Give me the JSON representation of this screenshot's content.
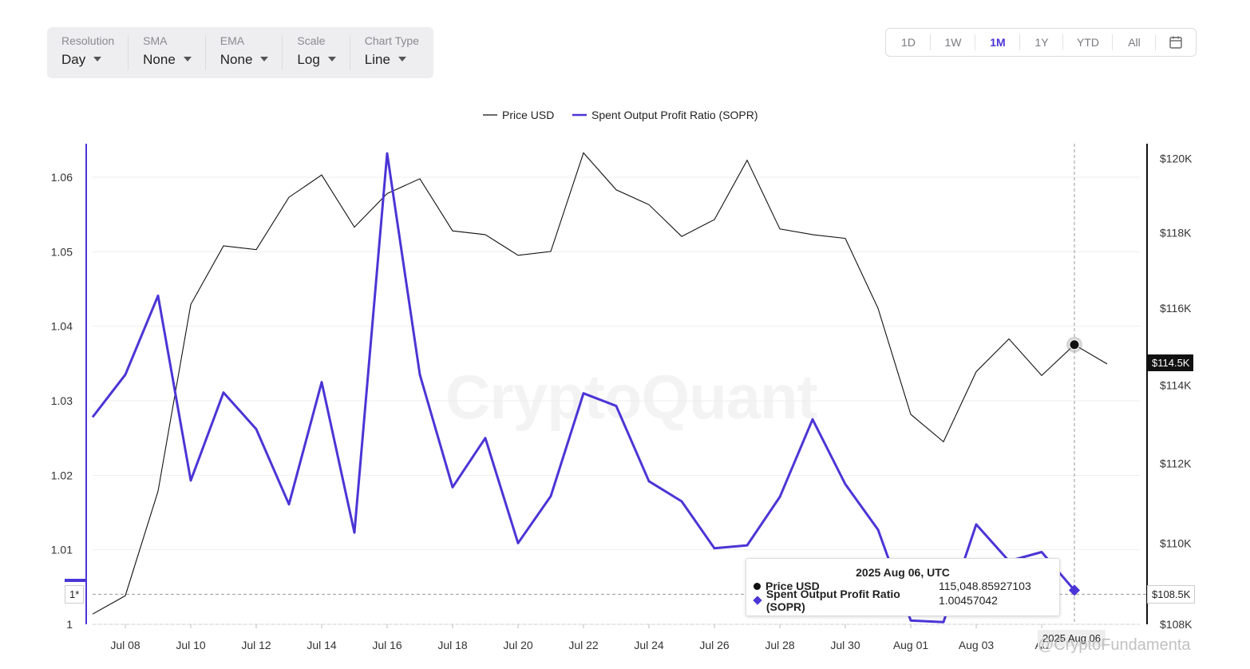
{
  "toolbar": {
    "items": [
      {
        "label": "Resolution",
        "value": "Day"
      },
      {
        "label": "SMA",
        "value": "None"
      },
      {
        "label": "EMA",
        "value": "None"
      },
      {
        "label": "Scale",
        "value": "Log"
      },
      {
        "label": "Chart Type",
        "value": "Line"
      }
    ]
  },
  "range": {
    "buttons": [
      "1D",
      "1W",
      "1M",
      "1Y",
      "YTD",
      "All"
    ],
    "active": "1M",
    "calendar_icon": "calendar-icon"
  },
  "legend": {
    "price": "Price USD",
    "sopr": "Spent Output Profit Ratio (SOPR)"
  },
  "colors": {
    "price": "#111111",
    "sopr": "#4a35d6"
  },
  "tooltip": {
    "date": "2025 Aug 06, UTC",
    "price_name": "Price USD",
    "price_value": "115,048.85927103",
    "sopr_name": "Spent Output Profit Ratio (SOPR)",
    "sopr_value": "1.00457042"
  },
  "badges": {
    "price_marker": "$114.5K",
    "crosshair_price": "$108.5K",
    "left_marker": "1*",
    "crosshair_date": "2025 Aug 06"
  },
  "watermark": "CryptoQuant",
  "watermark2": "@CryptoFundamenta",
  "chart_data": {
    "type": "line",
    "x": [
      "Jul 07",
      "Jul 08",
      "Jul 09",
      "Jul 10",
      "Jul 11",
      "Jul 12",
      "Jul 13",
      "Jul 14",
      "Jul 15",
      "Jul 16",
      "Jul 17",
      "Jul 18",
      "Jul 19",
      "Jul 20",
      "Jul 21",
      "Jul 22",
      "Jul 23",
      "Jul 24",
      "Jul 25",
      "Jul 26",
      "Jul 27",
      "Jul 28",
      "Jul 29",
      "Jul 30",
      "Jul 31",
      "Aug 01",
      "Aug 02",
      "Aug 03",
      "Aug 04",
      "Aug 05",
      "Aug 06",
      "Aug 07"
    ],
    "x_tick_labels": [
      "Jul 08",
      "Jul 10",
      "Jul 12",
      "Jul 14",
      "Jul 16",
      "Jul 18",
      "Jul 20",
      "Jul 22",
      "Jul 24",
      "Jul 26",
      "Jul 28",
      "Jul 30",
      "Aug 01",
      "Aug 03",
      "Au"
    ],
    "series": [
      {
        "name": "Price USD",
        "axis": "right",
        "values": [
          108250,
          108700,
          111300,
          116100,
          117650,
          117550,
          118950,
          119550,
          118150,
          119050,
          119450,
          118050,
          117950,
          117400,
          117500,
          120150,
          119150,
          118750,
          117900,
          118350,
          119950,
          118100,
          117950,
          117850,
          116000,
          113250,
          112550,
          114350,
          115200,
          114250,
          115050,
          114550
        ]
      },
      {
        "name": "Spent Output Profit Ratio (SOPR)",
        "axis": "left",
        "values": [
          1.0278,
          1.0335,
          1.0441,
          1.0193,
          1.0311,
          1.0262,
          1.0161,
          1.0325,
          1.0123,
          1.0632,
          1.0335,
          1.0184,
          1.025,
          1.0109,
          1.0172,
          1.031,
          1.0293,
          1.0192,
          1.0165,
          1.0102,
          1.0106,
          1.0171,
          1.0275,
          1.0188,
          1.0127,
          1.0005,
          1.0003,
          1.0134,
          1.0085,
          1.0097,
          1.00457,
          null
        ]
      }
    ],
    "y_left": {
      "ticks": [
        1,
        1.01,
        1.02,
        1.03,
        1.04,
        1.05,
        1.06
      ],
      "tick_labels": [
        "1",
        "1.01",
        "1.02",
        "1.03",
        "1.04",
        "1.05",
        "1.06"
      ],
      "range": [
        1.0,
        1.0645
      ]
    },
    "y_right": {
      "scale": "log",
      "ticks": [
        108000,
        110000,
        112000,
        114000,
        116000,
        118000,
        120000
      ],
      "tick_labels": [
        "$108K",
        "$110K",
        "$112K",
        "$114K",
        "$116K",
        "$118K",
        "$120K"
      ],
      "range": [
        108000,
        120400
      ]
    },
    "xlabel": "",
    "ylabel": "",
    "grid": true,
    "legend_position": "top-center",
    "crosshair": "Aug 06"
  }
}
